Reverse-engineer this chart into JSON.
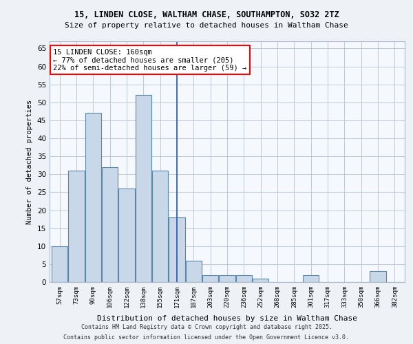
{
  "title1": "15, LINDEN CLOSE, WALTHAM CHASE, SOUTHAMPTON, SO32 2TZ",
  "title2": "Size of property relative to detached houses in Waltham Chase",
  "xlabel": "Distribution of detached houses by size in Waltham Chase",
  "ylabel": "Number of detached properties",
  "categories": [
    "57sqm",
    "73sqm",
    "90sqm",
    "106sqm",
    "122sqm",
    "138sqm",
    "155sqm",
    "171sqm",
    "187sqm",
    "203sqm",
    "220sqm",
    "236sqm",
    "252sqm",
    "268sqm",
    "285sqm",
    "301sqm",
    "317sqm",
    "333sqm",
    "350sqm",
    "366sqm",
    "382sqm"
  ],
  "values": [
    10,
    31,
    47,
    32,
    26,
    52,
    31,
    18,
    6,
    2,
    2,
    2,
    1,
    0,
    0,
    2,
    0,
    0,
    0,
    3,
    0
  ],
  "bar_color": "#c8d8e8",
  "bar_edge_color": "#5588aa",
  "vline_x": 7,
  "vline_color": "#2255aa",
  "annotation_title": "15 LINDEN CLOSE: 160sqm",
  "annotation_line1": "← 77% of detached houses are smaller (205)",
  "annotation_line2": "22% of semi-detached houses are larger (59) →",
  "ylim": [
    0,
    67
  ],
  "yticks": [
    0,
    5,
    10,
    15,
    20,
    25,
    30,
    35,
    40,
    45,
    50,
    55,
    60,
    65
  ],
  "footer1": "Contains HM Land Registry data © Crown copyright and database right 2025.",
  "footer2": "Contains public sector information licensed under the Open Government Licence v3.0.",
  "bg_color": "#eef2f7",
  "plot_bg_color": "#f5f8fc"
}
